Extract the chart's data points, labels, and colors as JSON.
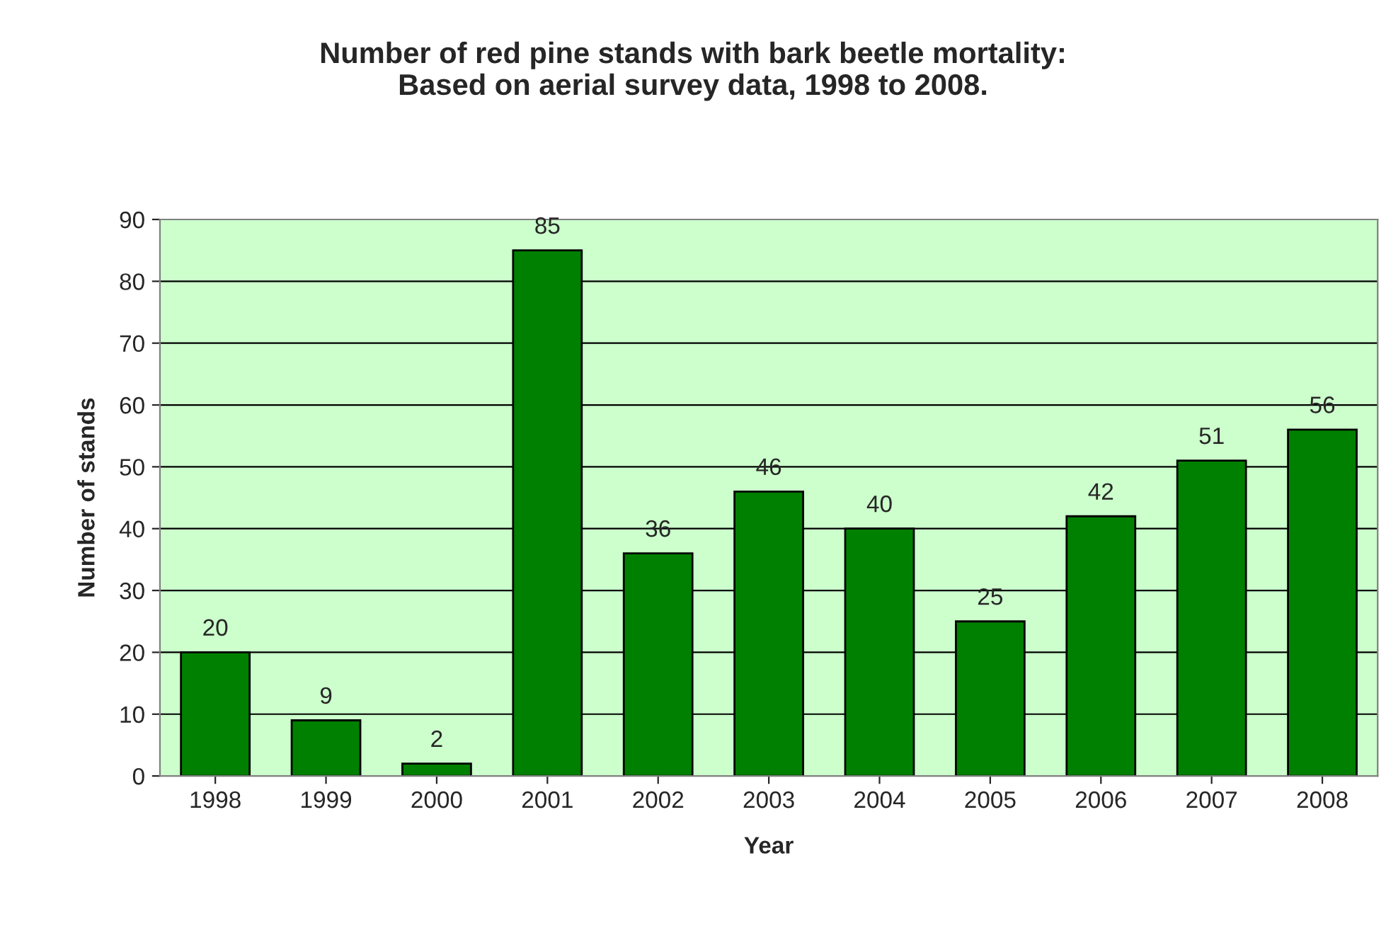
{
  "chart_data": {
    "type": "bar",
    "title": "Number of red pine stands with bark beetle mortality:\nBased on aerial survey data, 1998 to 2008.",
    "xlabel": "Year",
    "ylabel": "Number of stands",
    "categories": [
      "1998",
      "1999",
      "2000",
      "2001",
      "2002",
      "2003",
      "2004",
      "2005",
      "2006",
      "2007",
      "2008"
    ],
    "values": [
      20,
      9,
      2,
      85,
      36,
      46,
      40,
      25,
      42,
      51,
      56
    ],
    "color": "#008000",
    "ylim": [
      0,
      90
    ],
    "yticks": [
      0,
      10,
      20,
      30,
      40,
      50,
      60,
      70,
      80,
      90
    ],
    "grid": "y",
    "data_labels": true,
    "legend": false
  }
}
